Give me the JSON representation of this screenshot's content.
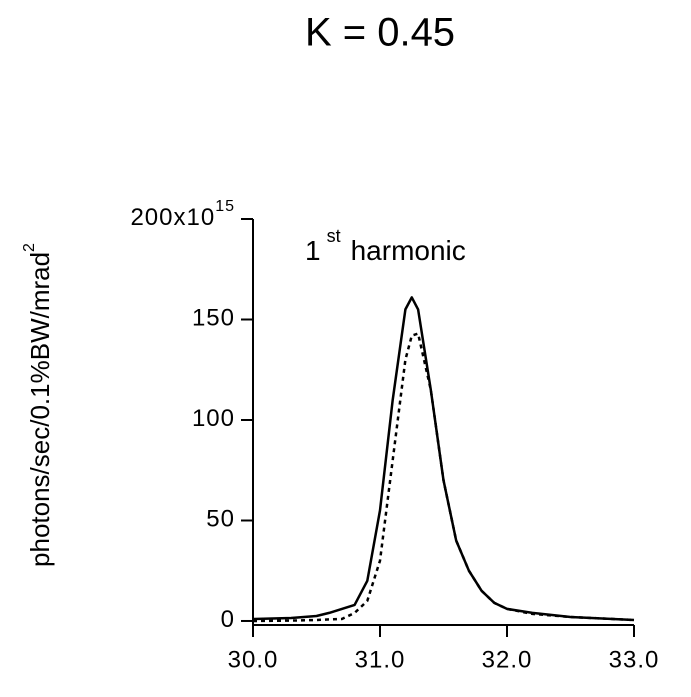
{
  "chart_data": {
    "type": "line",
    "title": "K = 0.45",
    "y_label": "photons/sec/0.1%BW/mrad",
    "y_label_sup": "2",
    "annotation": {
      "text": "1",
      "sup": "st",
      "rest": "harmonic"
    },
    "x": [
      30.0,
      30.3,
      30.5,
      30.6,
      30.7,
      30.8,
      30.9,
      31.0,
      31.1,
      31.2,
      31.25,
      31.3,
      31.4,
      31.5,
      31.6,
      31.7,
      31.8,
      31.9,
      32.0,
      32.2,
      32.5,
      33.0
    ],
    "series": [
      {
        "color": "#000000",
        "dash": "solid",
        "values": [
          1,
          1.5,
          2.5,
          4,
          6,
          8,
          20,
          55,
          110,
          155,
          161,
          155,
          115,
          70,
          40,
          25,
          15,
          9,
          6,
          4,
          2,
          0.5
        ]
      },
      {
        "color": "#000000",
        "dash": "dotted",
        "values": [
          0,
          0.2,
          0.5,
          0.8,
          1,
          4,
          10,
          30,
          80,
          130,
          142,
          143,
          115,
          70,
          40,
          25,
          15,
          9,
          6,
          3.5,
          2,
          0.5
        ]
      }
    ],
    "xlim": [
      30,
      33
    ],
    "xticks": [
      {
        "value": 30,
        "label": "30.0"
      },
      {
        "value": 31,
        "label": "31.0"
      },
      {
        "value": 32,
        "label": "32.0"
      },
      {
        "value": 33,
        "label": "33.0"
      }
    ],
    "ylim": [
      -2,
      200
    ],
    "yticks": [
      0,
      50,
      100,
      150,
      {
        "value": 200,
        "label": "200x10"
      }
    ],
    "ytick_exponent": "15",
    "grid": false
  }
}
